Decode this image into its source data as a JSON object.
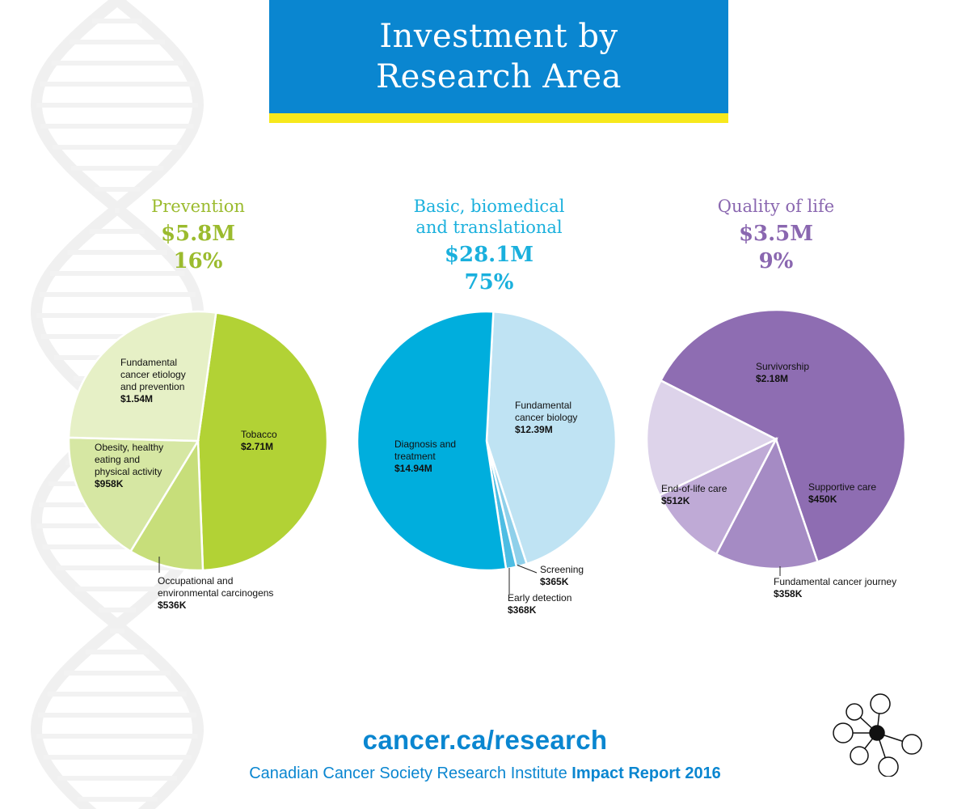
{
  "header": {
    "title": "Investment by\nResearch Area"
  },
  "colors": {
    "banner": "#0a86d0",
    "banner_stripe": "#f7e81c",
    "prevention": "#9bbb2e",
    "basic": "#1ab0dd",
    "quality": "#8a67b0",
    "link": "#0a86d0"
  },
  "chart_data": [
    {
      "type": "pie",
      "title": "Prevention",
      "total": "$5.8M",
      "percent": "16%",
      "slices": [
        {
          "label": "Tobacco",
          "value_text": "$2.71M",
          "value": 2.71,
          "color": "#b2d235"
        },
        {
          "label": "Occupational and environmental carcinogens",
          "value_text": "$536K",
          "value": 0.536,
          "color": "#c7de7a"
        },
        {
          "label": "Obesity, healthy eating and physical activity",
          "value_text": "$958K",
          "value": 0.958,
          "color": "#d6e7a3"
        },
        {
          "label": "Fundamental cancer etiology and prevention",
          "value_text": "$1.54M",
          "value": 1.54,
          "color": "#e6f0c6"
        }
      ]
    },
    {
      "type": "pie",
      "title": "Basic, biomedical\nand translational",
      "total": "$28.1M",
      "percent": "75%",
      "slices": [
        {
          "label": "Fundamental cancer biology",
          "value_text": "$12.39M",
          "value": 12.39,
          "color": "#bfe3f3"
        },
        {
          "label": "Screening",
          "value_text": "$365K",
          "value": 0.365,
          "color": "#8fd0ea"
        },
        {
          "label": "Early detection",
          "value_text": "$368K",
          "value": 0.368,
          "color": "#4dbde3"
        },
        {
          "label": "Diagnosis and treatment",
          "value_text": "$14.94M",
          "value": 14.94,
          "color": "#00aedd"
        }
      ]
    },
    {
      "type": "pie",
      "title": "Quality of life",
      "total": "$3.5M",
      "percent": "9%",
      "slices": [
        {
          "label": "Survivorship",
          "value_text": "$2.18M",
          "value": 2.18,
          "color": "#8e6db2"
        },
        {
          "label": "Supportive care",
          "value_text": "$450K",
          "value": 0.45,
          "color": "#a58bc4"
        },
        {
          "label": "Fundamental cancer journey",
          "value_text": "$358K",
          "value": 0.358,
          "color": "#bfaad6"
        },
        {
          "label": "End-of-life care",
          "value_text": "$512K",
          "value": 0.512,
          "color": "#ddd3ea"
        }
      ]
    }
  ],
  "footer": {
    "url": "cancer.ca/research",
    "org": "Canadian Cancer Society Research Institute",
    "report": "Impact Report 2016"
  }
}
